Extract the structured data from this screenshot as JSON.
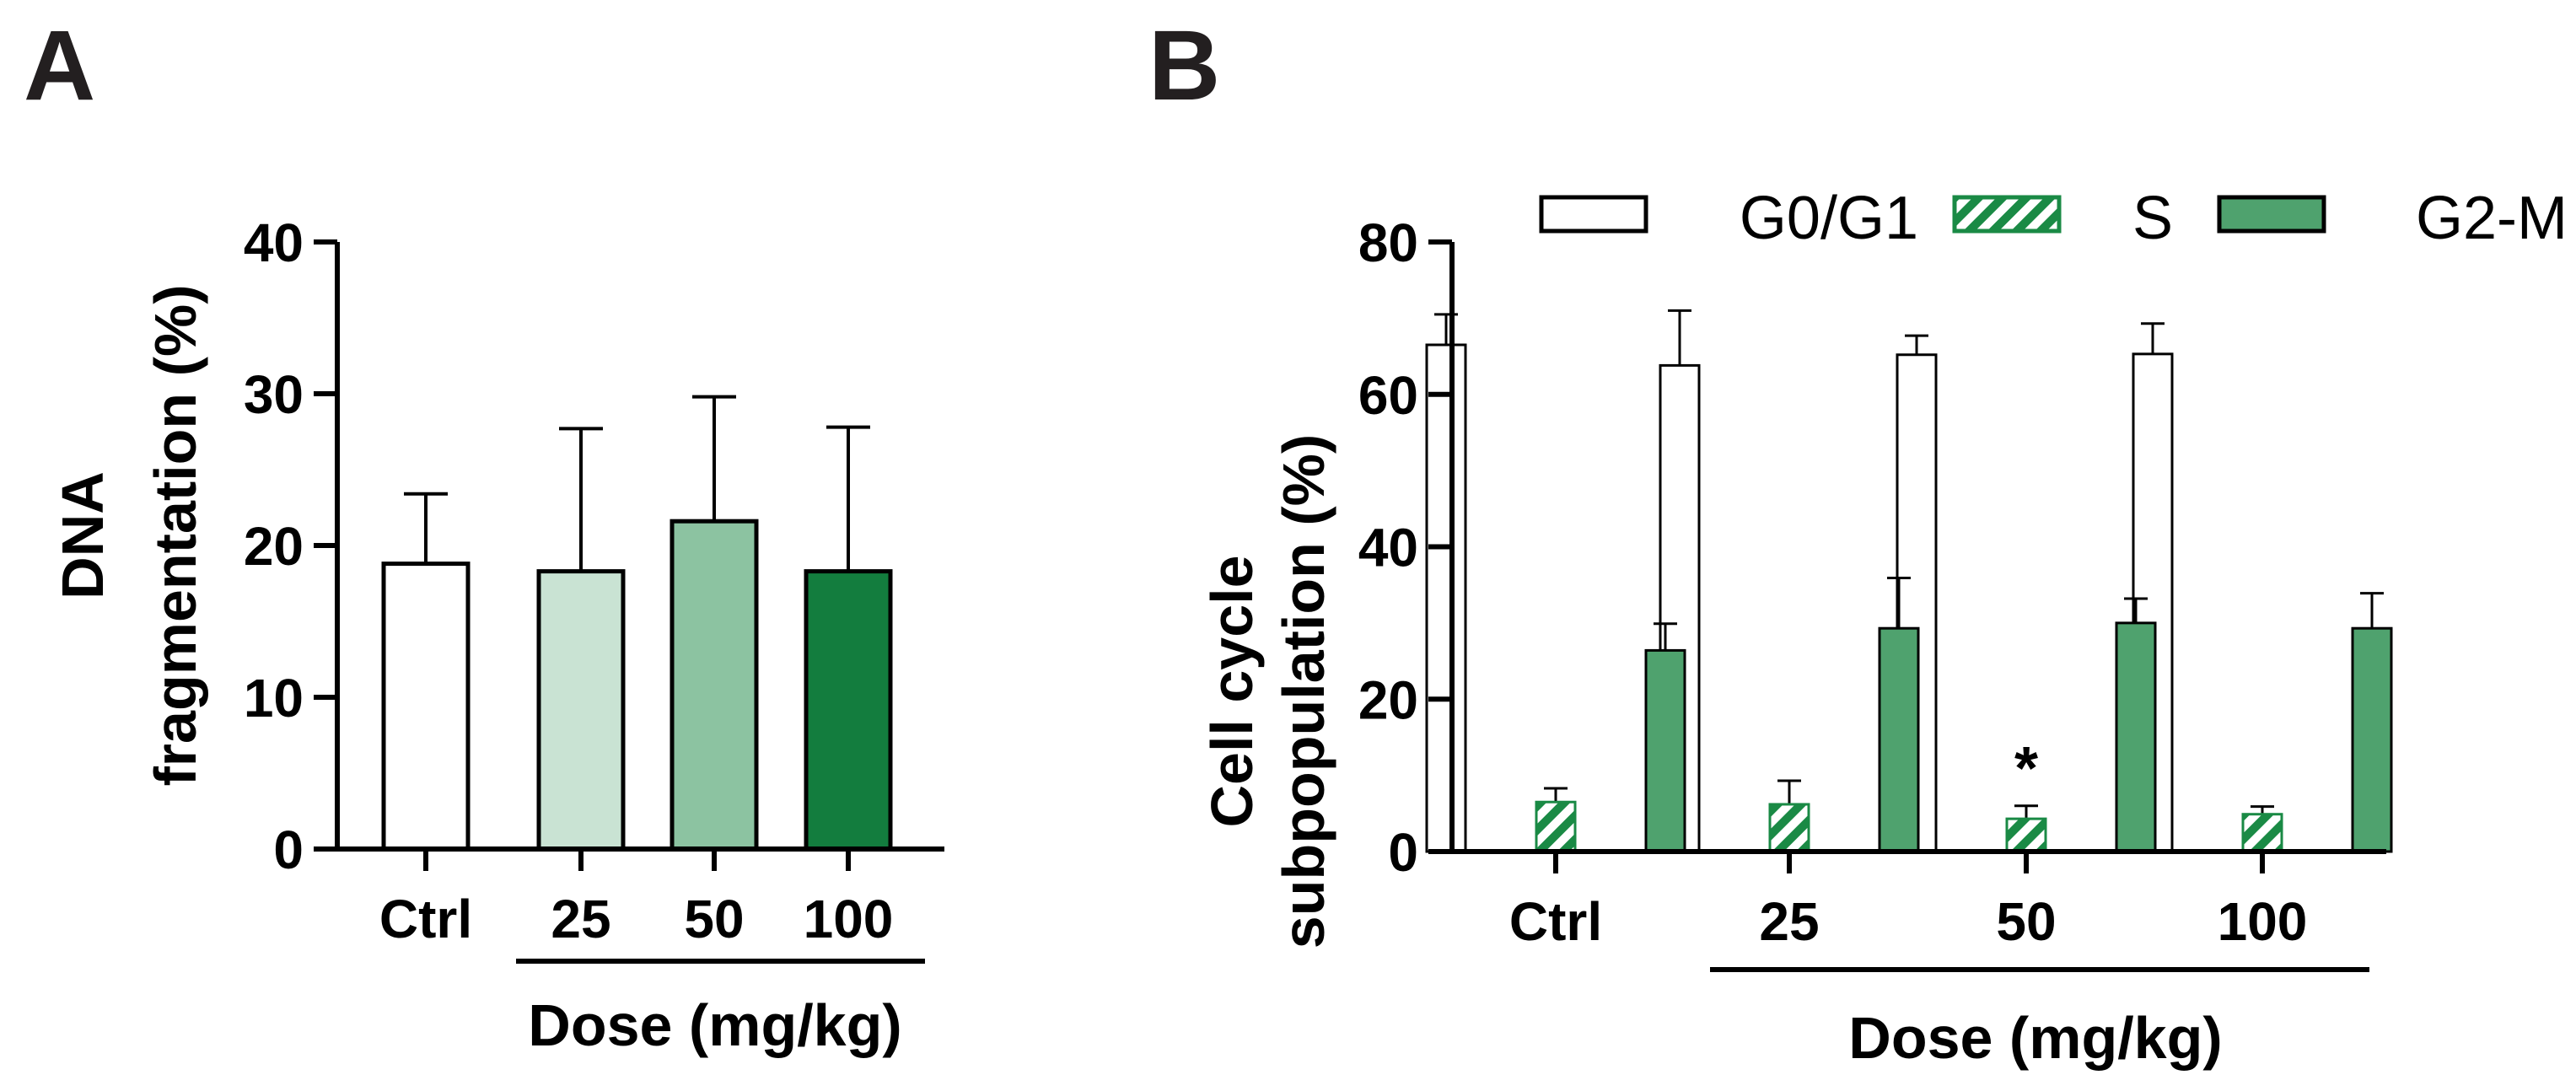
{
  "chart_data": [
    {
      "panel": "A",
      "type": "bar",
      "ylabel_lines": [
        "DNA",
        "fragmentation (%)"
      ],
      "xlabel": "Dose (mg/kg)",
      "categories": [
        "Ctrl",
        "25",
        "50",
        "100"
      ],
      "values": [
        18.8,
        18.3,
        21.6,
        18.3
      ],
      "errors": [
        4.6,
        9.4,
        8.2,
        9.5
      ],
      "colors": [
        "#ffffff",
        "#c9e3d3",
        "#8cc3a1",
        "#137d3e"
      ],
      "ylim": [
        0,
        40
      ],
      "yticks": [
        "0",
        "10",
        "20",
        "30",
        "40"
      ],
      "dose_bracket": "under 25, 50, 100",
      "grid": false
    },
    {
      "panel": "B",
      "type": "bar",
      "ylabel_lines": [
        "Cell cycle",
        "subpopulation (%)"
      ],
      "xlabel": "Dose (mg/kg)",
      "categories": [
        "Ctrl",
        "25",
        "50",
        "100"
      ],
      "ylim": [
        0,
        80
      ],
      "yticks": [
        "0",
        "20",
        "40",
        "60",
        "80"
      ],
      "legend_position": "top",
      "series": [
        {
          "name": "G0/G1",
          "values": [
            66.5,
            63.8,
            65.2,
            65.3
          ],
          "errors": [
            4.0,
            7.2,
            2.5,
            4.0
          ],
          "fill": "#ffffff",
          "pattern": "none"
        },
        {
          "name": "S",
          "values": [
            6.5,
            6.2,
            4.3,
            4.9
          ],
          "errors": [
            1.8,
            3.1,
            1.7,
            1.0
          ],
          "fill": "#1a8a45",
          "pattern": "hatch"
        },
        {
          "name": "G2-M",
          "values": [
            26.4,
            29.3,
            30.0,
            29.3
          ],
          "errors": [
            3.5,
            6.6,
            3.2,
            4.6
          ],
          "fill": "#4fa26e",
          "pattern": "none"
        }
      ],
      "annotations": [
        {
          "text": "*",
          "category": "50",
          "series": "S"
        }
      ],
      "grid": false
    }
  ],
  "panel_labels": [
    "A",
    "B"
  ]
}
